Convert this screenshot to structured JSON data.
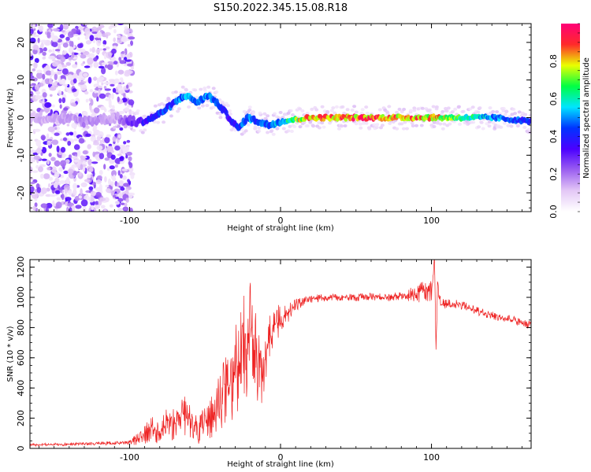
{
  "title": "S150.2022.345.15.08.R18",
  "chart_data": [
    {
      "type": "heatmap",
      "xlabel": "Height of straight line (km)",
      "ylabel": "Frequency (Hz)",
      "xlim": [
        -166,
        166
      ],
      "ylim": [
        -25,
        25
      ],
      "xticks": [
        -100,
        0,
        100
      ],
      "xtick_labels": [
        "-100",
        "0",
        "100"
      ],
      "yticks": [
        -20,
        -10,
        0,
        10,
        20
      ],
      "ytick_labels": [
        "-20",
        "-10",
        "0",
        "10",
        "20"
      ],
      "colorbar": {
        "label": "Normalized spectral amplitude",
        "range": [
          0,
          1
        ],
        "ticks": [
          0,
          0.2,
          0.4,
          0.6,
          0.8
        ],
        "tick_labels": [
          "0.0",
          "0.2",
          "0.4",
          "0.6",
          "0.8"
        ],
        "colormap": [
          "#ffffff",
          "#e4c8f6",
          "#9b5ff0",
          "#4b00ff",
          "#0033ff",
          "#00e5ff",
          "#00ff44",
          "#eaff00",
          "#ff2a2a",
          "#ff0077"
        ]
      },
      "ridge": {
        "x": [
          -166,
          -150,
          -130,
          -110,
          -100,
          -90,
          -80,
          -70,
          -63,
          -55,
          -48,
          -40,
          -34,
          -28,
          -22,
          -15,
          -8,
          0,
          20,
          60,
          100,
          140,
          166
        ],
        "frequency": [
          0,
          0,
          -1,
          0,
          -1,
          -1,
          1,
          4,
          6,
          4,
          6,
          3,
          0,
          -3,
          0,
          -1,
          -2,
          -1,
          0,
          0,
          0,
          0,
          -1
        ],
        "amplitude": [
          0.15,
          0.15,
          0.2,
          0.15,
          0.3,
          0.4,
          0.45,
          0.5,
          0.55,
          0.5,
          0.55,
          0.45,
          0.4,
          0.45,
          0.55,
          0.5,
          0.5,
          0.6,
          0.95,
          0.95,
          0.9,
          0.55,
          0.45
        ]
      },
      "grid": false
    },
    {
      "type": "line",
      "xlabel": "Height of straight line (km)",
      "ylabel": "SNR (10 * v/v)",
      "xlim": [
        -166,
        166
      ],
      "ylim": [
        0,
        1250
      ],
      "xticks": [
        -100,
        0,
        100
      ],
      "xtick_labels": [
        "-100",
        "0",
        "100"
      ],
      "yticks": [
        0,
        200,
        400,
        600,
        800,
        1000,
        1200
      ],
      "ytick_labels": [
        "0",
        "200",
        "400",
        "600",
        "800",
        "1000",
        "1200"
      ],
      "color": "#ee2222",
      "grid": false,
      "series": [
        {
          "x": [
            -166,
            -150,
            -130,
            -110,
            -100,
            -95,
            -90,
            -85,
            -80,
            -75,
            -70,
            -65,
            -60,
            -55,
            -50,
            -45,
            -40,
            -35,
            -30,
            -27,
            -25,
            -22,
            -20,
            -18,
            -15,
            -12,
            -10,
            -8,
            -5,
            -2,
            0,
            5,
            10,
            15,
            20,
            30,
            40,
            50,
            60,
            70,
            80,
            90,
            95,
            100,
            102,
            103,
            104,
            106,
            110,
            120,
            130,
            140,
            150,
            160,
            166
          ],
          "y": [
            25,
            25,
            30,
            35,
            40,
            60,
            90,
            140,
            110,
            180,
            160,
            230,
            190,
            120,
            150,
            220,
            300,
            420,
            500,
            620,
            750,
            600,
            900,
            700,
            550,
            500,
            620,
            700,
            760,
            830,
            850,
            900,
            940,
            970,
            985,
            1000,
            1000,
            1000,
            1005,
            1000,
            1010,
            1020,
            1050,
            1030,
            1250,
            630,
            1100,
            950,
            960,
            950,
            910,
            880,
            860,
            830,
            820
          ],
          "band": [
            10,
            10,
            12,
            12,
            15,
            40,
            60,
            100,
            80,
            110,
            120,
            150,
            120,
            100,
            120,
            150,
            200,
            250,
            300,
            350,
            350,
            350,
            300,
            300,
            250,
            200,
            200,
            180,
            150,
            120,
            100,
            70,
            50,
            35,
            30,
            25,
            25,
            25,
            25,
            25,
            30,
            60,
            80,
            80,
            30,
            30,
            60,
            40,
            30,
            30,
            30,
            30,
            30,
            30,
            30
          ]
        }
      ]
    }
  ]
}
